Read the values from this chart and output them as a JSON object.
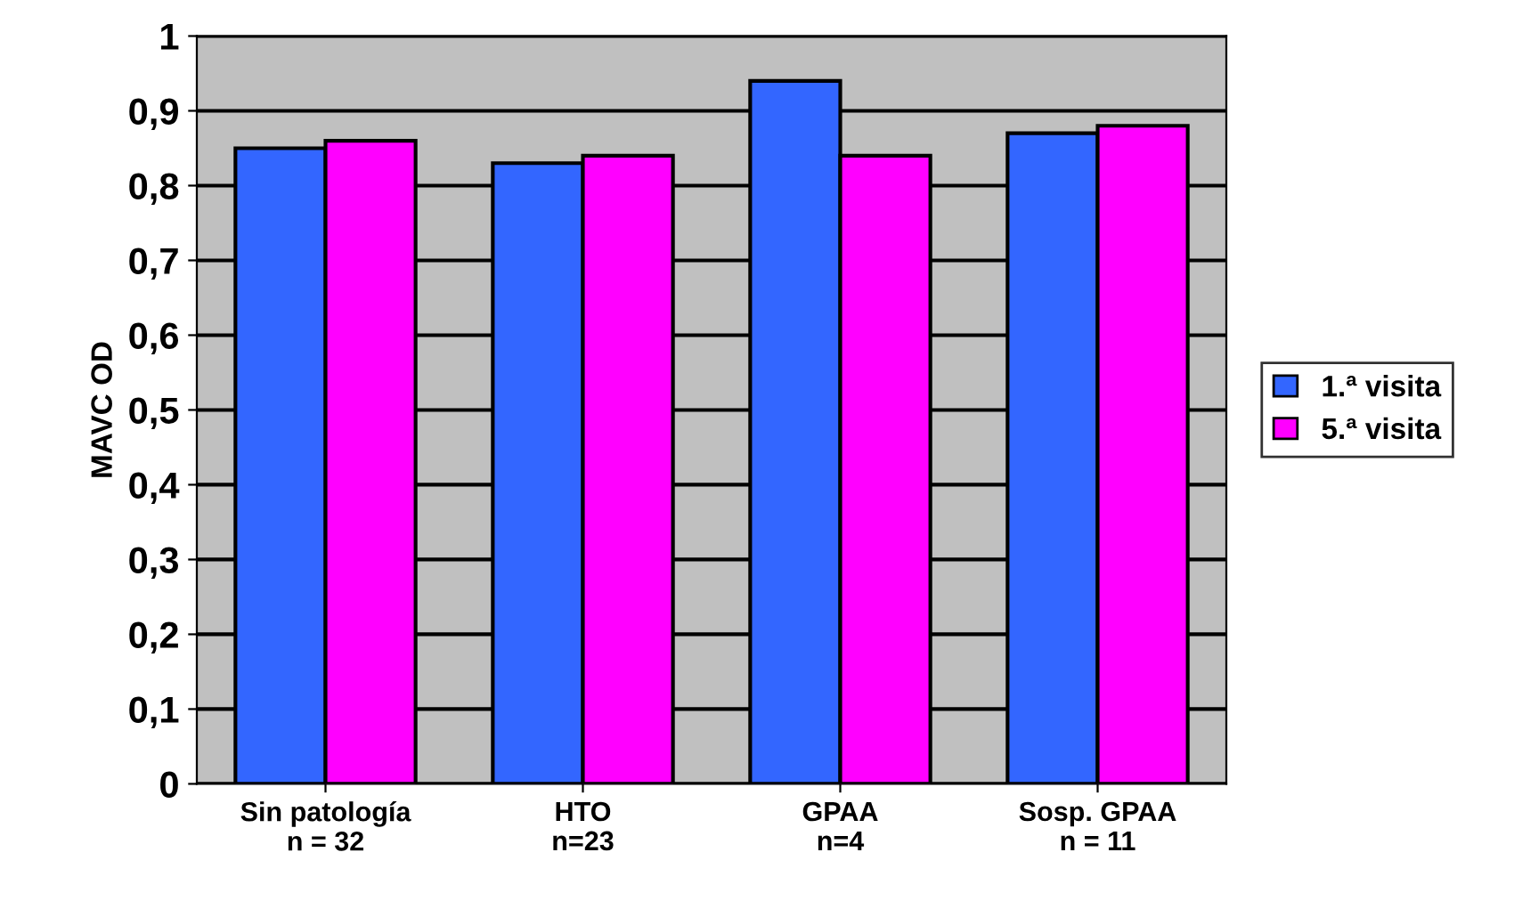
{
  "chart_data": {
    "type": "bar",
    "ylabel": "MAVC OD",
    "categories": [
      "Sin patología\nn = 32",
      "HTO\nn=23",
      "GPAA\nn=4",
      "Sosp. GPAA\nn = 11"
    ],
    "series": [
      {
        "name": "1.ª visita",
        "color": "#3366ff",
        "values": [
          0.85,
          0.83,
          0.94,
          0.87
        ]
      },
      {
        "name": "5.ª visita",
        "color": "#ff00ff",
        "values": [
          0.86,
          0.84,
          0.84,
          0.88
        ]
      }
    ],
    "ylim": [
      0,
      1
    ],
    "yticks": [
      0,
      {
        "value": 0.1,
        "label": "0,1"
      },
      {
        "value": 0.2,
        "label": "0,2"
      },
      {
        "value": 0.3,
        "label": "0,3"
      },
      {
        "value": 0.4,
        "label": "0,4"
      },
      {
        "value": 0.5,
        "label": "0,5"
      },
      {
        "value": 0.6,
        "label": "0,6"
      },
      {
        "value": 0.7,
        "label": "0,7"
      },
      {
        "value": 0.8,
        "label": "0,8"
      },
      {
        "value": 0.9,
        "label": "0,9"
      },
      1
    ],
    "grid": "y",
    "legend": "right"
  }
}
